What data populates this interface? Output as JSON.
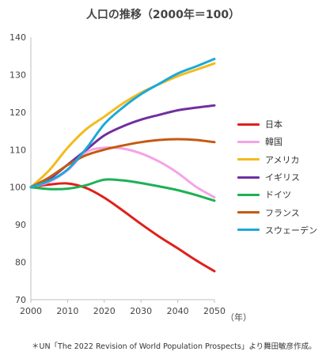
{
  "chart_data": {
    "type": "line",
    "title": "人口の推移（2000年＝100）",
    "x_unit": "（年）",
    "xlabel": "",
    "ylabel": "",
    "x_ticks": [
      "2000",
      "2010",
      "2020",
      "2030",
      "2040",
      "2050"
    ],
    "y_ticks": [
      "70",
      "80",
      "90",
      "100",
      "110",
      "120",
      "130",
      "140"
    ],
    "xlim": [
      2000,
      2050
    ],
    "ylim": [
      70,
      140
    ],
    "grid": false,
    "legend_position": "right",
    "x": [
      2000,
      2005,
      2010,
      2015,
      2020,
      2025,
      2030,
      2035,
      2040,
      2045,
      2050
    ],
    "series": [
      {
        "name": "日本",
        "color": "#e0201a",
        "values": [
          100,
          100.7,
          101,
          99.8,
          97.2,
          93.8,
          90.2,
          86.8,
          83.7,
          80.5,
          77.6
        ]
      },
      {
        "name": "韓国",
        "color": "#f5a3e6",
        "values": [
          100,
          101.4,
          104.5,
          109.3,
          110.5,
          110.3,
          109.0,
          106.8,
          103.8,
          100.1,
          97.3
        ]
      },
      {
        "name": "アメリカ",
        "color": "#f3bb1c",
        "values": [
          100,
          104.5,
          110.5,
          115.4,
          118.8,
          122.3,
          125.2,
          127.5,
          129.6,
          131.3,
          133.0
        ]
      },
      {
        "name": "イギリス",
        "color": "#7030a0",
        "values": [
          100,
          102.2,
          106.0,
          109.9,
          113.8,
          116.2,
          118.0,
          119.3,
          120.5,
          121.2,
          121.8
        ]
      },
      {
        "name": "ドイツ",
        "color": "#1db154",
        "values": [
          100,
          99.5,
          99.6,
          100.5,
          102.0,
          101.8,
          101.1,
          100.2,
          99.2,
          97.9,
          96.4
        ]
      },
      {
        "name": "フランス",
        "color": "#c55a11",
        "values": [
          100,
          102.6,
          105.9,
          108.5,
          110.0,
          111.1,
          112.0,
          112.6,
          112.8,
          112.6,
          112.0
        ]
      },
      {
        "name": "スウェーデン",
        "color": "#1ca9d8",
        "values": [
          100,
          101.7,
          104.7,
          110.2,
          116.8,
          121.2,
          124.8,
          127.6,
          130.3,
          132.2,
          134.2
        ]
      }
    ]
  },
  "footnote": "＊UN「The 2022 Revision of World Population Prospects」より舞田敏彦作成。"
}
